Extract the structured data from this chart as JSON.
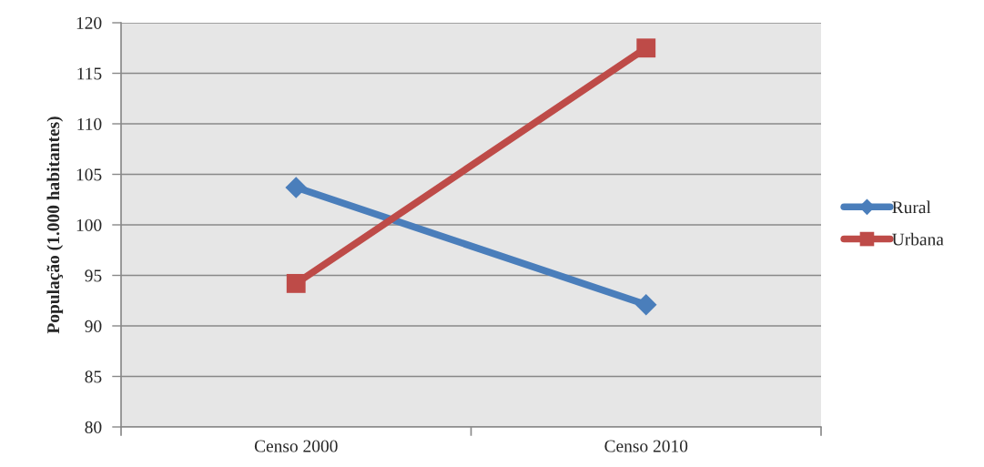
{
  "chart_data": {
    "type": "line",
    "ylabel": "População (1.000 habitantes)",
    "categories": [
      "Censo 2000",
      "Censo 2010"
    ],
    "series": [
      {
        "name": "Rural",
        "color": "#4a7ebb",
        "marker": "diamond",
        "values": [
          103.7,
          92.1
        ]
      },
      {
        "name": "Urbana",
        "color": "#be4b48",
        "marker": "square",
        "values": [
          94.2,
          117.5
        ]
      }
    ],
    "ylim": [
      80,
      120
    ],
    "yticks": [
      80,
      85,
      90,
      95,
      100,
      105,
      110,
      115,
      120
    ],
    "grid": "y",
    "legend": "right",
    "line_style": "solid"
  }
}
